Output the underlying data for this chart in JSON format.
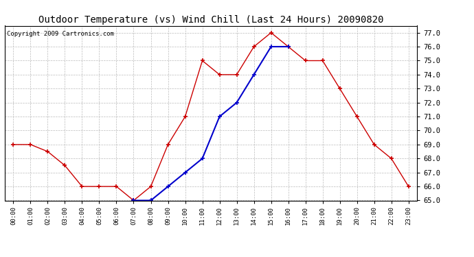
{
  "title": "Outdoor Temperature (vs) Wind Chill (Last 24 Hours) 20090820",
  "copyright": "Copyright 2009 Cartronics.com",
  "x_labels": [
    "00:00",
    "01:00",
    "02:00",
    "03:00",
    "04:00",
    "05:00",
    "06:00",
    "07:00",
    "08:00",
    "09:00",
    "10:00",
    "11:00",
    "12:00",
    "13:00",
    "14:00",
    "15:00",
    "16:00",
    "17:00",
    "18:00",
    "19:00",
    "20:00",
    "21:00",
    "22:00",
    "23:00"
  ],
  "temp_data": [
    69.0,
    69.0,
    68.5,
    67.5,
    66.0,
    66.0,
    66.0,
    65.0,
    66.0,
    69.0,
    71.0,
    75.0,
    74.0,
    74.0,
    76.0,
    77.0,
    76.0,
    75.0,
    75.0,
    73.0,
    71.0,
    69.0,
    68.0,
    66.0
  ],
  "wind_chill_data": [
    null,
    null,
    null,
    null,
    null,
    null,
    null,
    65.0,
    65.0,
    66.0,
    67.0,
    68.0,
    71.0,
    72.0,
    74.0,
    76.0,
    76.0,
    null,
    null,
    null,
    null,
    null,
    null,
    null
  ],
  "ylim": [
    65.0,
    77.5
  ],
  "yticks": [
    65.0,
    66.0,
    67.0,
    68.0,
    69.0,
    70.0,
    71.0,
    72.0,
    73.0,
    74.0,
    75.0,
    76.0,
    77.0
  ],
  "temp_color": "#cc0000",
  "wind_chill_color": "#0000cc",
  "bg_color": "#ffffff",
  "plot_bg_color": "#ffffff",
  "grid_color": "#bbbbbb",
  "title_fontsize": 10,
  "copyright_fontsize": 6.5
}
